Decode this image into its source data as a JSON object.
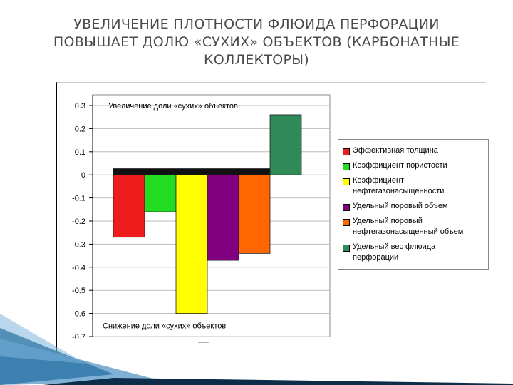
{
  "slide": {
    "title_line1": "УВЕЛИЧЕНИЕ ПЛОТНОСТИ ФЛЮИДА ПЕРФОРАЦИИ",
    "title_line2": "ПОВЫШАЕТ ДОЛЮ «СУХИХ» ОБЪЕКТОВ (КАРБОНАТНЫЕ",
    "title_line3": "КОЛЛЕКТОРЫ)",
    "accent_color": "#2a6fa8"
  },
  "chart_data": {
    "type": "bar",
    "title": "",
    "xlabel": "",
    "ylabel": "",
    "ylim": [
      -0.7,
      0.3
    ],
    "yticks": [
      "0.3",
      "0.2",
      "0.1",
      "0",
      "-0.1",
      "-0.2",
      "-0.3",
      "-0.4",
      "-0.5",
      "-0.6",
      "-0.7"
    ],
    "ytick_values": [
      0.3,
      0.2,
      0.1,
      0,
      -0.1,
      -0.2,
      -0.3,
      -0.4,
      -0.5,
      -0.6,
      -0.7
    ],
    "grid": true,
    "legend_position": "right",
    "annotations": {
      "top": "Увеличение доли «сухих» объектов",
      "bottom": "Снижение доли «сухих» объектов"
    },
    "series": [
      {
        "name": "Эффективная толщина",
        "value": -0.27,
        "color": "#ee1c1c"
      },
      {
        "name": "Коэффициент пористости",
        "value": -0.16,
        "color": "#22dd22"
      },
      {
        "name": "Коэффициент нефтегазонасыщенности",
        "value": -0.6,
        "color": "#ffff00"
      },
      {
        "name": "Удельный поровый объем",
        "value": -0.37,
        "color": "#800080"
      },
      {
        "name": "Удельный поровый нефтегазонасыщенный объем",
        "value": -0.34,
        "color": "#ff6600"
      },
      {
        "name": "Удельный вес флюида перфорации",
        "value": 0.26,
        "color": "#2e8b57"
      }
    ],
    "legend": [
      {
        "line1": "Эффективная толщина",
        "line2": ""
      },
      {
        "line1": "Коэффициент пористости",
        "line2": ""
      },
      {
        "line1": "Коэффициент",
        "line2": "нефтегазонасыщенности"
      },
      {
        "line1": "Удельный поровый объем",
        "line2": ""
      },
      {
        "line1": "Удельный поровый",
        "line2": "нефтегазонасыщенный объем"
      },
      {
        "line1": "Удельный вес флюида",
        "line2": "перфорации"
      }
    ]
  }
}
